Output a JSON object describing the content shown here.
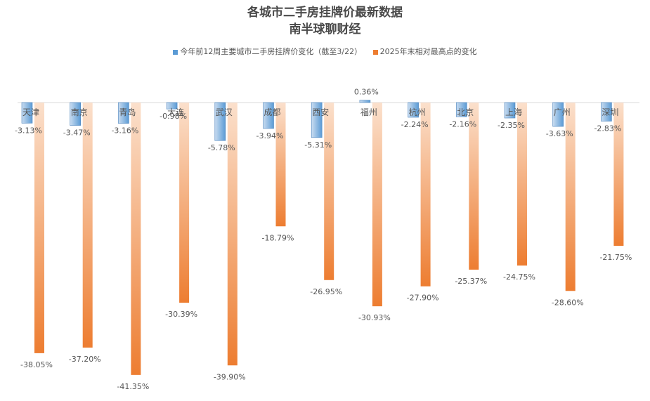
{
  "chart_data": {
    "type": "bar",
    "title": "各城市二手房挂牌价最新数据",
    "subtitle": "南半球聊财经",
    "categories": [
      "天津",
      "南京",
      "青岛",
      "大连",
      "武汉",
      "成都",
      "西安",
      "福州",
      "杭州",
      "北京",
      "上海",
      "广州",
      "深圳"
    ],
    "series": [
      {
        "name": "今年前12周主要城市二手房挂牌价变化（截至3/22）",
        "color": "#5b9bd5",
        "values": [
          -3.13,
          -3.47,
          -3.16,
          -0.98,
          -5.78,
          -3.94,
          -5.31,
          0.36,
          -2.24,
          -2.16,
          -2.35,
          -3.63,
          -2.83
        ],
        "labels": [
          "-3.13%",
          "-3.47%",
          "-3.16%",
          "-0.98%",
          "-5.78%",
          "-3.94%",
          "-5.31%",
          "0.36%",
          "-2.24%",
          "-2.16%",
          "-2.35%",
          "-3.63%",
          "-2.83%"
        ]
      },
      {
        "name": "2025年末相对最高点的变化",
        "color": "#ed7d31",
        "values": [
          -38.05,
          -37.2,
          -41.35,
          -30.39,
          -39.9,
          -18.79,
          -26.95,
          -30.93,
          -27.9,
          -25.37,
          -24.75,
          -28.6,
          -21.75
        ],
        "labels": [
          "-38.05%",
          "-37.20%",
          "-41.35%",
          "-30.39%",
          "-39.90%",
          "-18.79%",
          "-26.95%",
          "-30.93%",
          "-27.90%",
          "-25.37%",
          "-24.75%",
          "-28.60%",
          "-21.75%"
        ]
      }
    ],
    "ylim": [
      -42,
      1
    ],
    "legend_position": "top",
    "grid": false
  }
}
